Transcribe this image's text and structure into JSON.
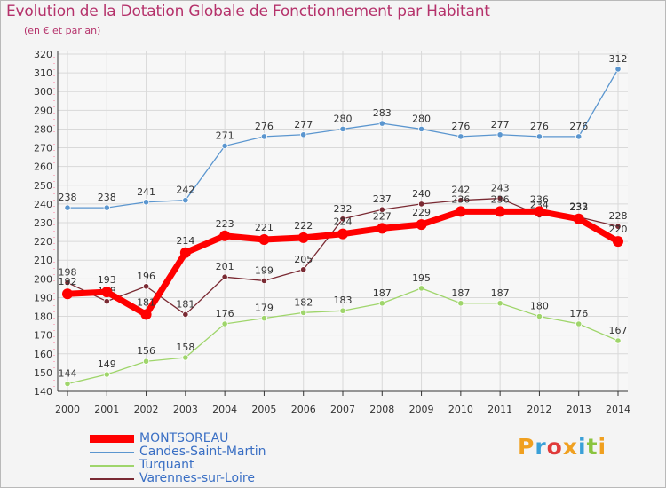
{
  "title": "Evolution de la Dotation Globale de Fonctionnement par Habitant",
  "subtitle": "(en € et par an)",
  "logo": {
    "text": "Proxiti",
    "colors": [
      "#f0a020",
      "#3aa0d8",
      "#e03a3a",
      "#f0a020",
      "#3aa0d8",
      "#8ac43f",
      "#f0a020"
    ]
  },
  "colors": {
    "background": "#f4f4f4",
    "grid": "#d9d9d9",
    "axis_text": "#333333",
    "title": "#b5326b",
    "legend_text": "#3a6fc4"
  },
  "chart_data": {
    "type": "line",
    "title": "Evolution de la Dotation Globale de Fonctionnement par Habitant",
    "subtitle": "(en € et par an)",
    "xlabel": "",
    "ylabel": "",
    "x": [
      2000,
      2001,
      2002,
      2003,
      2004,
      2005,
      2006,
      2007,
      2008,
      2009,
      2010,
      2011,
      2012,
      2013,
      2014
    ],
    "ylim": [
      140,
      320
    ],
    "yticks": [
      140,
      150,
      160,
      170,
      180,
      190,
      200,
      210,
      220,
      230,
      240,
      250,
      260,
      270,
      280,
      290,
      300,
      310,
      320
    ],
    "grid": true,
    "legend_position": "bottom-left",
    "series": [
      {
        "name": "Candes-Saint-Martin",
        "color": "#5b96cf",
        "values": [
          238,
          238,
          241,
          242,
          271,
          276,
          277,
          280,
          283,
          280,
          276,
          277,
          276,
          276,
          312
        ]
      },
      {
        "name": "Turquant",
        "color": "#9fd56b",
        "values": [
          144,
          149,
          156,
          158,
          176,
          179,
          182,
          183,
          187,
          195,
          187,
          187,
          180,
          176,
          167
        ]
      },
      {
        "name": "Varennes-sur-Loire",
        "color": "#7a2a33",
        "values": [
          198,
          188,
          196,
          181,
          201,
          199,
          205,
          232,
          237,
          240,
          242,
          243,
          234,
          233,
          228
        ]
      },
      {
        "name": "MONTSOREAU",
        "color": "#ff0000",
        "values": [
          192,
          193,
          181,
          214,
          223,
          221,
          222,
          224,
          227,
          229,
          236,
          236,
          236,
          232,
          220
        ]
      }
    ],
    "legend_order": [
      "MONTSOREAU",
      "Candes-Saint-Martin",
      "Turquant",
      "Varennes-sur-Loire"
    ]
  }
}
